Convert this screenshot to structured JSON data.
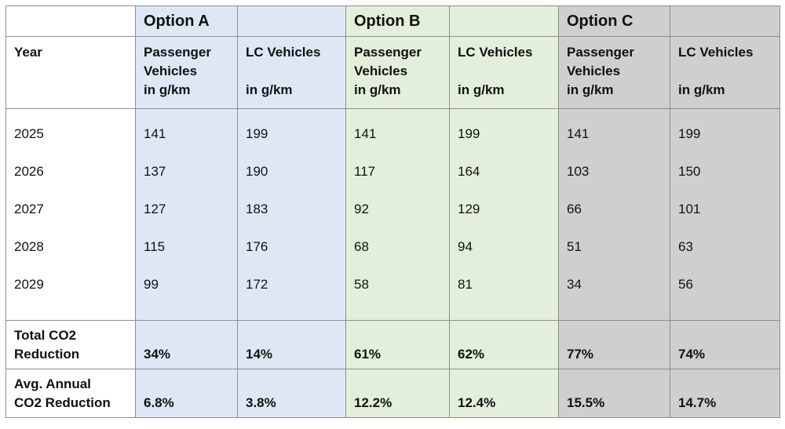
{
  "options": {
    "a": "Option A",
    "b": "Option B",
    "c": "Option C"
  },
  "year_label": "Year",
  "columns": {
    "passenger": [
      "Passenger",
      "Vehicles",
      "in g/km"
    ],
    "lc": [
      "LC Vehicles",
      "in g/km"
    ]
  },
  "rows": [
    {
      "year": "2025",
      "values": [
        "141",
        "199",
        "141",
        "199",
        "141",
        "199"
      ]
    },
    {
      "year": "2026",
      "values": [
        "137",
        "190",
        "117",
        "164",
        "103",
        "150"
      ]
    },
    {
      "year": "2027",
      "values": [
        "127",
        "183",
        "92",
        "129",
        "66",
        "101"
      ]
    },
    {
      "year": "2028",
      "values": [
        "115",
        "176",
        "68",
        "94",
        "51",
        "63"
      ]
    },
    {
      "year": "2029",
      "values": [
        "99",
        "172",
        "58",
        "81",
        "34",
        "56"
      ]
    }
  ],
  "total": {
    "label": [
      "Total CO2",
      "Reduction"
    ],
    "values": [
      "34%",
      "14%",
      "61%",
      "62%",
      "77%",
      "74%"
    ]
  },
  "average": {
    "label": [
      "Avg. Annual",
      "CO2 Reduction"
    ],
    "values": [
      "6.8%",
      "3.8%",
      "12.2%",
      "12.4%",
      "15.5%",
      "14.7%"
    ]
  },
  "colors": {
    "option_a": "#dee8f5",
    "option_b": "#e3efda",
    "option_c": "#cfcfcf",
    "border": "#8e8e8e"
  }
}
